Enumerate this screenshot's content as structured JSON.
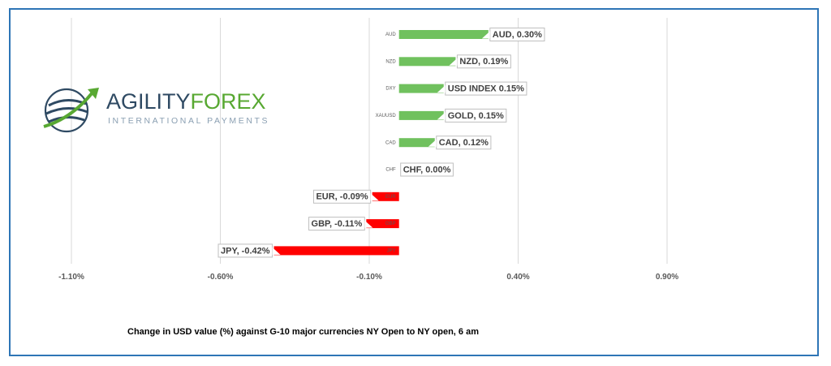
{
  "logo": {
    "word_part1": "AGILITY",
    "word_part2": "FOREX",
    "subtitle": "INTERNATIONAL PAYMENTS"
  },
  "caption": "Change in  USD value (%)  against  G-10 major currencies NY Open to NY open, 6 am",
  "colors": {
    "positive": "#70c15e",
    "negative": "#ff0000",
    "grid": "#d9d9d9",
    "frame": "#2e75b6"
  },
  "chart_data": {
    "type": "bar",
    "orientation": "horizontal",
    "xlim": [
      -1.1,
      1.0
    ],
    "x_ticks": [
      -1.1,
      -0.6,
      -0.1,
      0.4,
      0.9
    ],
    "x_tick_labels": [
      "-1.10%",
      "-0.60%",
      "-0.10%",
      "0.40%",
      "0.90%"
    ],
    "grid": true,
    "categories": [
      "AUD",
      "NZD",
      "DXY",
      "XAUUSD",
      "CAD",
      "CHF",
      "EUR",
      "GBP",
      "JPY"
    ],
    "values": [
      0.3,
      0.19,
      0.15,
      0.15,
      0.12,
      0.0,
      -0.09,
      -0.11,
      -0.42
    ],
    "data_labels": [
      "AUD, 0.30%",
      "NZD, 0.19%",
      "USD INDEX 0.15%",
      "GOLD, 0.15%",
      "CAD, 0.12%",
      "CHF, 0.00%",
      "EUR, -0.09%",
      "GBP, -0.11%",
      "JPY, -0.42%"
    ]
  }
}
